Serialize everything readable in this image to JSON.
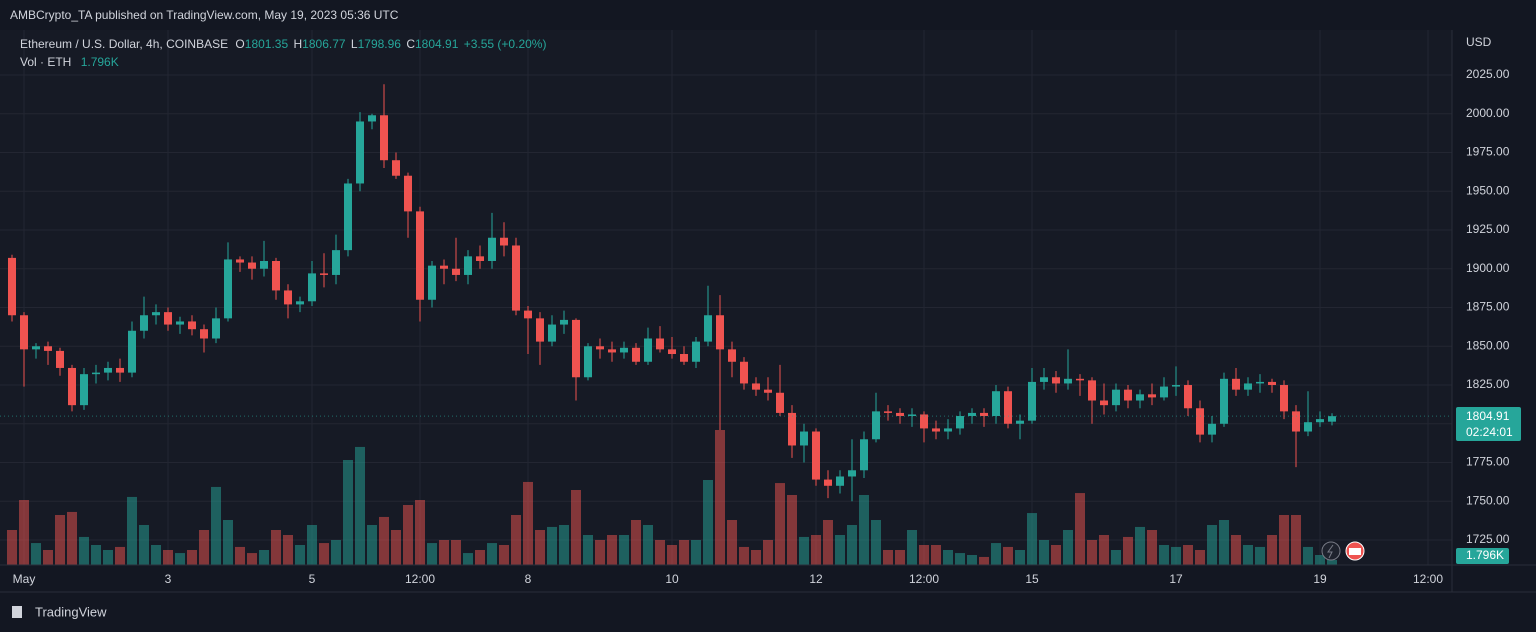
{
  "published": "AMBCrypto_TA published on TradingView.com, May 19, 2023 05:36 UTC",
  "brand": "TradingView",
  "chart_data": {
    "type": "candlestick",
    "symbol": "Ethereum / U.S. Dollar, 4h, COINBASE",
    "legend_keys": [
      "O",
      "H",
      "L",
      "C"
    ],
    "change": "+3.55 (+0.20%)",
    "volume_title": "Vol · ETH",
    "volume_label": "1.796K",
    "currency": "USD",
    "countdown": "02:24:01",
    "up_color": "#26a69a",
    "down_color": "#ef5350",
    "grid": true,
    "xlim": [
      -1,
      120
    ],
    "xticks": [
      {
        "value": 1,
        "label": "May"
      },
      {
        "value": 13,
        "label": "3"
      },
      {
        "value": 25,
        "label": "5"
      },
      {
        "value": 34,
        "label": "12:00"
      },
      {
        "value": 43,
        "label": "8"
      },
      {
        "value": 55,
        "label": "10"
      },
      {
        "value": 67,
        "label": "12"
      },
      {
        "value": 76,
        "label": "12:00"
      },
      {
        "value": 85,
        "label": "15"
      },
      {
        "value": 97,
        "label": "17"
      },
      {
        "value": 109,
        "label": "19"
      },
      {
        "value": 118,
        "label": "12:00"
      }
    ],
    "ylim": [
      1708.9,
      2054
    ],
    "yticks": [
      {
        "value": 1725,
        "label": "1725.00"
      },
      {
        "value": 1750,
        "label": "1750.00"
      },
      {
        "value": 1775,
        "label": "1775.00"
      },
      {
        "value": 1800,
        "label": "1800.00"
      },
      {
        "value": 1825,
        "label": "1825.00"
      },
      {
        "value": 1850,
        "label": "1850.00"
      },
      {
        "value": 1875,
        "label": "1875.00"
      },
      {
        "value": 1900,
        "label": "1900.00"
      },
      {
        "value": 1925,
        "label": "1925.00"
      },
      {
        "value": 1950,
        "label": "1950.00"
      },
      {
        "value": 1975,
        "label": "1975.00"
      },
      {
        "value": 2000,
        "label": "2000.00"
      },
      {
        "value": 2025,
        "label": "2025.00"
      }
    ],
    "ohlc": [
      [
        1907,
        1909,
        1866,
        1870
      ],
      [
        1870,
        1872,
        1824,
        1848
      ],
      [
        1848,
        1852,
        1842,
        1850
      ],
      [
        1850,
        1853,
        1838,
        1847
      ],
      [
        1847,
        1849,
        1831,
        1836
      ],
      [
        1836,
        1838,
        1808,
        1812
      ],
      [
        1812,
        1836,
        1809,
        1832
      ],
      [
        1832,
        1838,
        1826,
        1833
      ],
      [
        1833,
        1840,
        1828,
        1836
      ],
      [
        1836,
        1842,
        1827,
        1833
      ],
      [
        1833,
        1866,
        1830,
        1860
      ],
      [
        1860,
        1882,
        1855,
        1870
      ],
      [
        1870,
        1877,
        1864,
        1872
      ],
      [
        1872,
        1875,
        1860,
        1864
      ],
      [
        1864,
        1869,
        1858,
        1866
      ],
      [
        1866,
        1870,
        1857,
        1861
      ],
      [
        1861,
        1864,
        1846,
        1855
      ],
      [
        1855,
        1875,
        1852,
        1868
      ],
      [
        1868,
        1917,
        1866,
        1906
      ],
      [
        1906,
        1908,
        1898,
        1904
      ],
      [
        1904,
        1908,
        1893,
        1900
      ],
      [
        1900,
        1918,
        1895,
        1905
      ],
      [
        1905,
        1907,
        1880,
        1886
      ],
      [
        1886,
        1890,
        1868,
        1877
      ],
      [
        1877,
        1882,
        1872,
        1879
      ],
      [
        1879,
        1905,
        1876,
        1897
      ],
      [
        1897,
        1910,
        1888,
        1896
      ],
      [
        1896,
        1922,
        1890,
        1912
      ],
      [
        1912,
        1958,
        1908,
        1955
      ],
      [
        1955,
        2001,
        1950,
        1995
      ],
      [
        1995,
        2000,
        1990,
        1999
      ],
      [
        1999,
        2019,
        1965,
        1970
      ],
      [
        1970,
        1975,
        1958,
        1960
      ],
      [
        1960,
        1962,
        1920,
        1937
      ],
      [
        1937,
        1940,
        1866,
        1880
      ],
      [
        1880,
        1905,
        1875,
        1902
      ],
      [
        1902,
        1906,
        1890,
        1900
      ],
      [
        1900,
        1920,
        1892,
        1896
      ],
      [
        1896,
        1912,
        1890,
        1908
      ],
      [
        1908,
        1915,
        1900,
        1905
      ],
      [
        1905,
        1936,
        1900,
        1920
      ],
      [
        1920,
        1930,
        1908,
        1915
      ],
      [
        1915,
        1920,
        1870,
        1873
      ],
      [
        1873,
        1876,
        1845,
        1868
      ],
      [
        1868,
        1872,
        1838,
        1853
      ],
      [
        1853,
        1870,
        1850,
        1864
      ],
      [
        1864,
        1873,
        1858,
        1867
      ],
      [
        1867,
        1868,
        1815,
        1830
      ],
      [
        1830,
        1852,
        1828,
        1850
      ],
      [
        1850,
        1855,
        1842,
        1848
      ],
      [
        1848,
        1853,
        1840,
        1846
      ],
      [
        1846,
        1853,
        1842,
        1849
      ],
      [
        1849,
        1852,
        1838,
        1840
      ],
      [
        1840,
        1862,
        1838,
        1855
      ],
      [
        1855,
        1863,
        1846,
        1848
      ],
      [
        1848,
        1856,
        1842,
        1845
      ],
      [
        1845,
        1850,
        1838,
        1840
      ],
      [
        1840,
        1856,
        1836,
        1853
      ],
      [
        1853,
        1889,
        1850,
        1870
      ],
      [
        1870,
        1883,
        1796,
        1848
      ],
      [
        1848,
        1853,
        1830,
        1840
      ],
      [
        1840,
        1843,
        1822,
        1826
      ],
      [
        1826,
        1830,
        1818,
        1822
      ],
      [
        1822,
        1830,
        1815,
        1820
      ],
      [
        1820,
        1838,
        1805,
        1807
      ],
      [
        1807,
        1812,
        1778,
        1786
      ],
      [
        1786,
        1800,
        1775,
        1795
      ],
      [
        1795,
        1797,
        1760,
        1764
      ],
      [
        1764,
        1770,
        1752,
        1760
      ],
      [
        1760,
        1770,
        1755,
        1766
      ],
      [
        1766,
        1790,
        1750,
        1770
      ],
      [
        1770,
        1795,
        1765,
        1790
      ],
      [
        1790,
        1820,
        1788,
        1808
      ],
      [
        1808,
        1812,
        1802,
        1807
      ],
      [
        1807,
        1810,
        1800,
        1805
      ],
      [
        1805,
        1810,
        1798,
        1806
      ],
      [
        1806,
        1808,
        1788,
        1797
      ],
      [
        1797,
        1802,
        1790,
        1795
      ],
      [
        1795,
        1803,
        1790,
        1797
      ],
      [
        1797,
        1808,
        1793,
        1805
      ],
      [
        1805,
        1810,
        1800,
        1807
      ],
      [
        1807,
        1810,
        1798,
        1805
      ],
      [
        1805,
        1825,
        1800,
        1821
      ],
      [
        1821,
        1824,
        1797,
        1800
      ],
      [
        1800,
        1806,
        1790,
        1802
      ],
      [
        1802,
        1836,
        1800,
        1827
      ],
      [
        1827,
        1836,
        1822,
        1830
      ],
      [
        1830,
        1834,
        1820,
        1826
      ],
      [
        1826,
        1848,
        1822,
        1829
      ],
      [
        1829,
        1832,
        1818,
        1828
      ],
      [
        1828,
        1830,
        1800,
        1815
      ],
      [
        1815,
        1826,
        1806,
        1812
      ],
      [
        1812,
        1826,
        1808,
        1822
      ],
      [
        1822,
        1825,
        1810,
        1815
      ],
      [
        1815,
        1822,
        1810,
        1819
      ],
      [
        1819,
        1826,
        1812,
        1817
      ],
      [
        1817,
        1830,
        1815,
        1824
      ],
      [
        1824,
        1837,
        1818,
        1825
      ],
      [
        1825,
        1828,
        1805,
        1810
      ],
      [
        1810,
        1815,
        1788,
        1793
      ],
      [
        1793,
        1805,
        1788,
        1800
      ],
      [
        1800,
        1833,
        1798,
        1829
      ],
      [
        1829,
        1836,
        1818,
        1822
      ],
      [
        1822,
        1830,
        1818,
        1826
      ],
      [
        1826,
        1832,
        1820,
        1827
      ],
      [
        1827,
        1829,
        1820,
        1825
      ],
      [
        1825,
        1828,
        1803,
        1808
      ],
      [
        1808,
        1812,
        1772,
        1795
      ],
      [
        1795,
        1821,
        1792,
        1801
      ],
      [
        1801,
        1808,
        1798,
        1803
      ],
      [
        1801.35,
        1806.77,
        1798.96,
        1804.91
      ]
    ],
    "volume": [
      12.6,
      23.4,
      7.9,
      5.4,
      18,
      19.1,
      10.1,
      7.2,
      5.4,
      6.5,
      24.5,
      14.4,
      7.2,
      5.4,
      4.3,
      5.4,
      12.6,
      28.1,
      16.2,
      6.5,
      4.3,
      5.4,
      12.6,
      10.8,
      7.2,
      14.4,
      7.9,
      9,
      37.8,
      42.5,
      14.4,
      17.3,
      12.6,
      21.6,
      23.4,
      7.9,
      9,
      9,
      4.3,
      5.4,
      7.9,
      7.2,
      18,
      29.9,
      12.6,
      13.7,
      14.4,
      27,
      10.8,
      9,
      10.8,
      10.8,
      16.2,
      14.4,
      9,
      7.2,
      9,
      9,
      30.6,
      48.6,
      16.2,
      6.5,
      5.4,
      9,
      29.5,
      25.2,
      10.1,
      10.8,
      16.2,
      10.8,
      14.4,
      25.2,
      16.2,
      5.4,
      5.4,
      12.6,
      7.2,
      7.2,
      5.4,
      4.3,
      3.6,
      2.9,
      7.9,
      6.5,
      5.4,
      18.7,
      9,
      7.2,
      12.6,
      25.9,
      9,
      10.8,
      5.4,
      10.1,
      13.7,
      12.6,
      7.2,
      6.5,
      7.2,
      5.4,
      14.4,
      16.2,
      10.8,
      7.2,
      6.5,
      10.8,
      18,
      18,
      6.5,
      3.6,
      1.796
    ]
  }
}
